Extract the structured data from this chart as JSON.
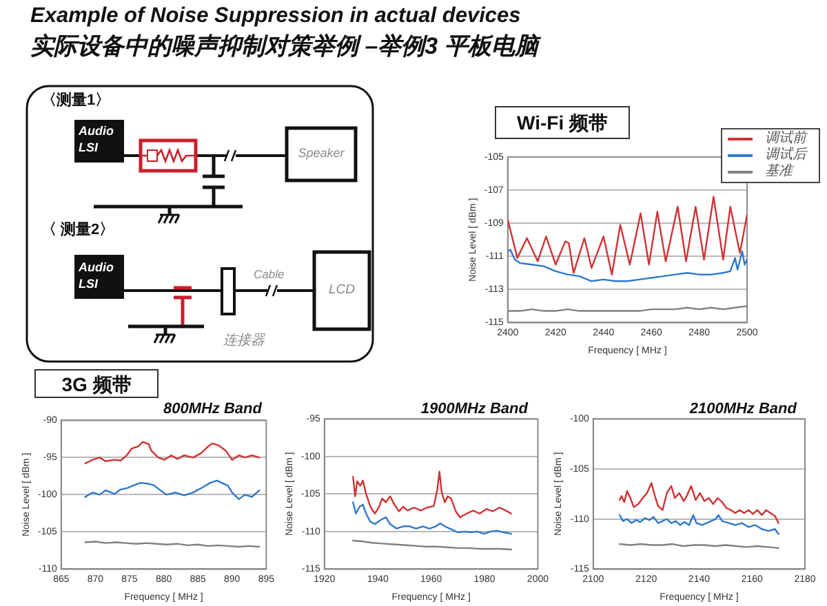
{
  "chart_data": [
    {
      "type": "other",
      "title": "Example of Noise Suppression in actual devices",
      "subtitle": "实际设备中的噪声抑制对策举例 –举例3 平板电脑",
      "annotations": [
        "〈测量1〉",
        "Audio LSI",
        "Speaker",
        "〈 测量2〉",
        "Audio LSI",
        "Cable",
        "LCD",
        "连接器"
      ]
    },
    {
      "type": "line",
      "title": "Wi-Fi 频带",
      "xlabel": "Frequency [ MHz ]",
      "ylabel": "Noise Level [ dBm ]",
      "xlim": [
        2400,
        2500
      ],
      "xticks": [
        2400,
        2420,
        2440,
        2460,
        2480,
        2500
      ],
      "ylim": [
        -115,
        -105
      ],
      "yticks": [
        -115,
        -113,
        -111,
        -109,
        -107,
        -105
      ],
      "grid": "y",
      "legend": "top right",
      "marker": "none",
      "series": [
        {
          "name": "调试前",
          "color": "#d03232",
          "x": [
            2400,
            2404,
            2408,
            2412.5,
            2416,
            2420,
            2424,
            2425.5,
            2427.5,
            2432,
            2435,
            2440,
            2443.5,
            2447,
            2451,
            2455.5,
            2459,
            2462.5,
            2466,
            2471,
            2474.5,
            2478.5,
            2482,
            2486,
            2490,
            2493,
            2497,
            2500
          ],
          "values": [
            -108.8,
            -111.1,
            -109.9,
            -111.3,
            -109.8,
            -111.5,
            -110.1,
            -110.2,
            -112.0,
            -109.9,
            -111.7,
            -109.8,
            -112.1,
            -109.1,
            -111.5,
            -108.4,
            -111.5,
            -108.3,
            -111.3,
            -108.0,
            -111.3,
            -108.0,
            -111.2,
            -107.4,
            -111.2,
            -108.0,
            -110.8,
            -108.5
          ]
        },
        {
          "name": "调试后",
          "color": "#2e78cc",
          "x": [
            2400,
            2401,
            2403,
            2405,
            2410,
            2415,
            2420,
            2425,
            2430,
            2435,
            2440,
            2445,
            2450,
            2455,
            2460,
            2465,
            2470,
            2475,
            2480,
            2485,
            2490,
            2493,
            2495,
            2496,
            2498,
            2499,
            2500
          ],
          "values": [
            -110.7,
            -110.6,
            -111.2,
            -111.4,
            -111.5,
            -111.6,
            -111.9,
            -112.1,
            -112.2,
            -112.5,
            -112.4,
            -112.5,
            -112.5,
            -112.4,
            -112.3,
            -112.2,
            -112.1,
            -112.0,
            -112.1,
            -112.1,
            -112.0,
            -111.9,
            -111.1,
            -111.8,
            -110.7,
            -111.5,
            -111.2
          ]
        },
        {
          "name": "基准",
          "color": "#808080",
          "x": [
            2400,
            2405,
            2410,
            2415,
            2420,
            2425,
            2430,
            2435,
            2440,
            2445,
            2450,
            2455,
            2460,
            2465,
            2470,
            2475,
            2480,
            2485,
            2490,
            2495,
            2500
          ],
          "values": [
            -114.3,
            -114.3,
            -114.2,
            -114.3,
            -114.3,
            -114.2,
            -114.3,
            -114.3,
            -114.3,
            -114.3,
            -114.3,
            -114.3,
            -114.2,
            -114.2,
            -114.2,
            -114.1,
            -114.2,
            -114.1,
            -114.2,
            -114.1,
            -114.0
          ]
        }
      ]
    },
    {
      "type": "line",
      "title": "800MHz Band",
      "annotations": [
        "3G 频带"
      ],
      "xlabel": "Frequency [ MHz ]",
      "ylabel": "Noise Level [ dBm ]",
      "xlim": [
        865,
        895
      ],
      "xticks": [
        865,
        870,
        875,
        880,
        885,
        890,
        895
      ],
      "ylim": [
        -110,
        -90
      ],
      "yticks": [
        -110,
        -105,
        -100,
        -95,
        -90
      ],
      "grid": "y",
      "marker": "none",
      "series": [
        {
          "color": "#d03232",
          "x": [
            868.5,
            869.6,
            870.6,
            871.5,
            872.8,
            873.7,
            874.6,
            875.3,
            876.3,
            876.9,
            877.8,
            878.2,
            879.2,
            880.1,
            881.1,
            882.0,
            883.0,
            884.3,
            885.5,
            886.5,
            887.1,
            888.1,
            889.1,
            890.0,
            891.0,
            891.9,
            892.9,
            894.0
          ],
          "values": [
            -95.8,
            -95.3,
            -95.0,
            -95.5,
            -95.3,
            -95.4,
            -94.7,
            -93.8,
            -93.5,
            -92.9,
            -93.2,
            -94.1,
            -95.0,
            -95.3,
            -94.7,
            -95.2,
            -94.7,
            -95.0,
            -94.4,
            -93.5,
            -93.1,
            -93.4,
            -94.1,
            -95.3,
            -94.7,
            -95.0,
            -94.7,
            -95.0
          ]
        },
        {
          "color": "#2e78cc",
          "x": [
            868.5,
            869.6,
            870.6,
            871.5,
            872.8,
            873.7,
            874.7,
            875.7,
            876.6,
            877.6,
            878.5,
            879.5,
            880.4,
            881.7,
            883.0,
            884.3,
            885.5,
            886.8,
            887.8,
            888.7,
            889.4,
            890.0,
            891.0,
            891.9,
            892.9,
            894.0
          ],
          "values": [
            -100.3,
            -99.7,
            -100.0,
            -99.4,
            -99.9,
            -99.3,
            -99.1,
            -98.7,
            -98.4,
            -98.5,
            -98.7,
            -99.4,
            -100.0,
            -99.7,
            -100.1,
            -99.7,
            -99.1,
            -98.4,
            -98.1,
            -98.5,
            -98.8,
            -99.7,
            -100.6,
            -100.0,
            -100.3,
            -99.4
          ]
        },
        {
          "color": "#808080",
          "x": [
            868.5,
            870,
            871.5,
            873,
            874.5,
            876,
            877.5,
            879,
            880.5,
            882,
            883.5,
            885,
            886.5,
            888,
            889.5,
            891,
            892.5,
            894
          ],
          "values": [
            -106.4,
            -106.3,
            -106.5,
            -106.4,
            -106.5,
            -106.6,
            -106.5,
            -106.6,
            -106.7,
            -106.6,
            -106.8,
            -106.7,
            -106.9,
            -106.8,
            -106.9,
            -107.0,
            -106.9,
            -107.0
          ]
        }
      ]
    },
    {
      "type": "line",
      "title": "1900MHz Band",
      "xlabel": "Frequency [ MHz ]",
      "ylabel": "Noise Level [ dBm ]",
      "xlim": [
        1920,
        2000
      ],
      "xticks": [
        1920,
        1940,
        1960,
        1980,
        2000
      ],
      "ylim": [
        -115,
        -95
      ],
      "yticks": [
        -115,
        -110,
        -105,
        -100,
        -95
      ],
      "grid": "y",
      "marker": "none",
      "series": [
        {
          "color": "#d03232",
          "x": [
            1930.7,
            1931.5,
            1932.3,
            1933.4,
            1934.4,
            1935.6,
            1937.2,
            1938.9,
            1940.5,
            1941.6,
            1943.0,
            1944.6,
            1946.2,
            1947.9,
            1949.5,
            1951.1,
            1953.6,
            1956.1,
            1958.5,
            1961.0,
            1962.3,
            1963.1,
            1963.9,
            1965.1,
            1966.2,
            1967.5,
            1969.2,
            1970.8,
            1973.3,
            1975.7,
            1978.2,
            1980.7,
            1983.1,
            1985.6,
            1988.0,
            1990.0
          ],
          "values": [
            -102.7,
            -105.3,
            -103.3,
            -103.9,
            -103.2,
            -105.0,
            -106.7,
            -107.6,
            -106.7,
            -105.6,
            -106.1,
            -105.3,
            -106.4,
            -107.3,
            -106.7,
            -107.2,
            -106.8,
            -107.2,
            -106.8,
            -106.6,
            -104.4,
            -102.0,
            -104.7,
            -106.1,
            -105.3,
            -105.6,
            -107.3,
            -108.1,
            -107.6,
            -107.2,
            -107.6,
            -107.0,
            -107.3,
            -106.8,
            -107.2,
            -107.6
          ]
        },
        {
          "color": "#2e78cc",
          "x": [
            1930.7,
            1931.8,
            1933.1,
            1934.4,
            1935.6,
            1937.2,
            1938.9,
            1941.3,
            1943.0,
            1944.6,
            1947.0,
            1949.5,
            1952.0,
            1954.4,
            1956.9,
            1959.3,
            1961.8,
            1963.4,
            1965.1,
            1967.5,
            1970.0,
            1972.5,
            1974.9,
            1977.4,
            1979.8,
            1982.3,
            1984.8,
            1987.2,
            1990.0
          ],
          "values": [
            -106.1,
            -107.6,
            -106.7,
            -106.4,
            -107.6,
            -108.7,
            -109.0,
            -108.4,
            -108.1,
            -109.0,
            -109.6,
            -109.3,
            -109.3,
            -109.6,
            -109.3,
            -109.6,
            -109.3,
            -108.9,
            -109.3,
            -109.7,
            -110.1,
            -110.0,
            -110.1,
            -110.0,
            -110.3,
            -110.0,
            -109.9,
            -110.1,
            -110.3
          ]
        },
        {
          "color": "#808080",
          "x": [
            1930.7,
            1934,
            1938,
            1942,
            1946,
            1950,
            1954,
            1958,
            1962,
            1966,
            1970,
            1974,
            1978,
            1982,
            1986,
            1990
          ],
          "values": [
            -111.2,
            -111.3,
            -111.5,
            -111.6,
            -111.7,
            -111.8,
            -111.9,
            -112.0,
            -112.0,
            -112.1,
            -112.2,
            -112.2,
            -112.3,
            -112.3,
            -112.3,
            -112.4
          ]
        }
      ]
    },
    {
      "type": "line",
      "title": "2100MHz Band",
      "xlabel": "Frequency [ MHz ]",
      "ylabel": "Noise Level [ dBm ]",
      "xlim": [
        2100,
        2180
      ],
      "xticks": [
        2100,
        2120,
        2140,
        2160,
        2180
      ],
      "ylim": [
        -115,
        -100
      ],
      "yticks": [
        -115,
        -110,
        -105,
        -100
      ],
      "grid": "y",
      "marker": "none",
      "series": [
        {
          "color": "#d03232",
          "x": [
            2110,
            2110.7,
            2111.7,
            2112.8,
            2114,
            2115.3,
            2117,
            2118.7,
            2120.3,
            2122,
            2123.3,
            2124.5,
            2126.2,
            2127.8,
            2129.5,
            2130.8,
            2132.5,
            2134.2,
            2135.3,
            2137,
            2138.7,
            2140.3,
            2142,
            2143.7,
            2145.3,
            2147,
            2148.7,
            2150.3,
            2152,
            2153.7,
            2155.3,
            2157,
            2158.7,
            2160.3,
            2162,
            2163.7,
            2165.3,
            2167,
            2168.7,
            2170
          ],
          "values": [
            -108.1,
            -107.7,
            -108.3,
            -107.2,
            -107.9,
            -108.8,
            -108.5,
            -107.9,
            -107.4,
            -106.4,
            -107.7,
            -108.7,
            -109.1,
            -107.4,
            -106.7,
            -107.9,
            -107.4,
            -108.2,
            -107.7,
            -106.7,
            -108.1,
            -107.4,
            -108.2,
            -107.9,
            -108.5,
            -107.9,
            -108.3,
            -108.9,
            -109.1,
            -109.4,
            -109.1,
            -109.4,
            -109.1,
            -109.5,
            -109.1,
            -109.6,
            -109.1,
            -109.4,
            -109.7,
            -110.4
          ]
        },
        {
          "color": "#2e78cc",
          "x": [
            2110,
            2111.2,
            2112.8,
            2114.5,
            2116.2,
            2117.8,
            2119.5,
            2121.2,
            2122.8,
            2124.5,
            2126.2,
            2127.8,
            2129.5,
            2131.2,
            2132.8,
            2134.5,
            2136.2,
            2137.8,
            2139,
            2141.2,
            2143.7,
            2146.2,
            2147.3,
            2148.7,
            2151.2,
            2153.7,
            2156.2,
            2158.7,
            2161.2,
            2163.7,
            2166.2,
            2168.7,
            2170
          ],
          "values": [
            -109.6,
            -110.2,
            -110.0,
            -110.4,
            -110.1,
            -110.3,
            -109.9,
            -110.1,
            -109.8,
            -110.4,
            -110.2,
            -110.0,
            -110.4,
            -110.2,
            -110.6,
            -110.3,
            -110.6,
            -109.6,
            -110.4,
            -110.6,
            -110.3,
            -110.0,
            -109.6,
            -110.2,
            -110.4,
            -110.6,
            -110.4,
            -110.8,
            -110.6,
            -111.0,
            -111.2,
            -111.0,
            -111.5
          ]
        },
        {
          "color": "#808080",
          "x": [
            2110,
            2114,
            2118,
            2122,
            2126,
            2130,
            2134,
            2138,
            2142,
            2146,
            2150,
            2154,
            2158,
            2162,
            2166,
            2170
          ],
          "values": [
            -112.5,
            -112.6,
            -112.5,
            -112.6,
            -112.6,
            -112.5,
            -112.7,
            -112.6,
            -112.6,
            -112.7,
            -112.6,
            -112.7,
            -112.8,
            -112.7,
            -112.8,
            -112.9
          ]
        }
      ]
    }
  ]
}
